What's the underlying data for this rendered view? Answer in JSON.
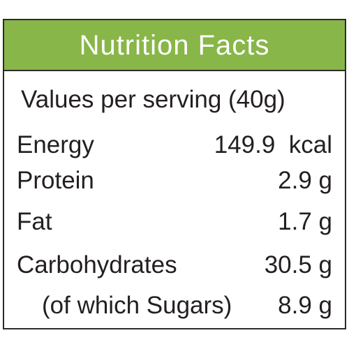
{
  "header": {
    "title": "Nutrition Facts"
  },
  "serving": "Values per serving (40g)",
  "rows": [
    {
      "label": "Energy",
      "value": "149.9  kcal"
    },
    {
      "label": "Protein",
      "value": "2.9 g"
    },
    {
      "label": "Fat",
      "value": "1.7 g"
    },
    {
      "label": "Carbohydrates",
      "value": "30.5 g"
    },
    {
      "label": "(of which Sugars)",
      "value": "8.9 g"
    }
  ]
}
